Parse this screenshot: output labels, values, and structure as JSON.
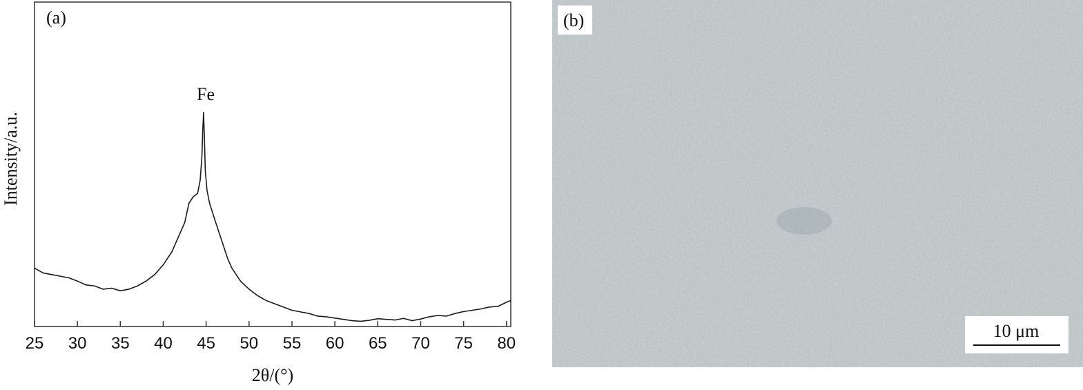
{
  "chart_data": {
    "type": "line",
    "panel_label": "(a)",
    "annotation": "Fe",
    "x_label": "2θ/(°)",
    "y_label": "Intensity/a.u.",
    "color": "#1a1a1a",
    "x": [
      25,
      26,
      27,
      28,
      29,
      30,
      31,
      32,
      33,
      34,
      35,
      36,
      37,
      38,
      39,
      40,
      41,
      42,
      42.5,
      43,
      43.5,
      44,
      44.3,
      44.5,
      44.6,
      44.7,
      44.8,
      44.9,
      45.1,
      45.4,
      46,
      46.5,
      47,
      47.5,
      48,
      49,
      50,
      51,
      52,
      53,
      54,
      55,
      56,
      57,
      58,
      59,
      60,
      61,
      62,
      63,
      64,
      65,
      66,
      67,
      68,
      69,
      70,
      71,
      72,
      73,
      74,
      75,
      76,
      77,
      78,
      79,
      80,
      80.5
    ],
    "values": [
      18,
      16.5,
      16,
      15.5,
      15,
      14,
      12.8,
      12.5,
      11.5,
      11.8,
      11,
      11.5,
      12.5,
      14,
      16,
      19,
      23,
      29,
      32,
      38,
      40,
      41,
      45,
      52,
      60,
      66,
      58,
      48,
      42,
      38,
      33,
      29,
      25,
      21,
      18,
      14,
      11.5,
      9.5,
      8,
      7,
      6,
      5,
      4.5,
      4,
      3.2,
      3,
      2.6,
      2.2,
      1.8,
      1.6,
      1.9,
      2.4,
      2.2,
      2,
      2.5,
      1.8,
      2.3,
      3,
      3.4,
      3.2,
      4,
      4.6,
      5,
      5.4,
      6,
      6.2,
      7.5,
      8
    ],
    "xlim": [
      25,
      80.5
    ],
    "xticks": [
      25,
      30,
      35,
      40,
      45,
      50,
      55,
      60,
      65,
      70,
      75,
      80
    ],
    "ylim": [
      0,
      100
    ]
  },
  "image_panel": {
    "panel_label": "(b)",
    "scale_bar": "10 μm"
  }
}
